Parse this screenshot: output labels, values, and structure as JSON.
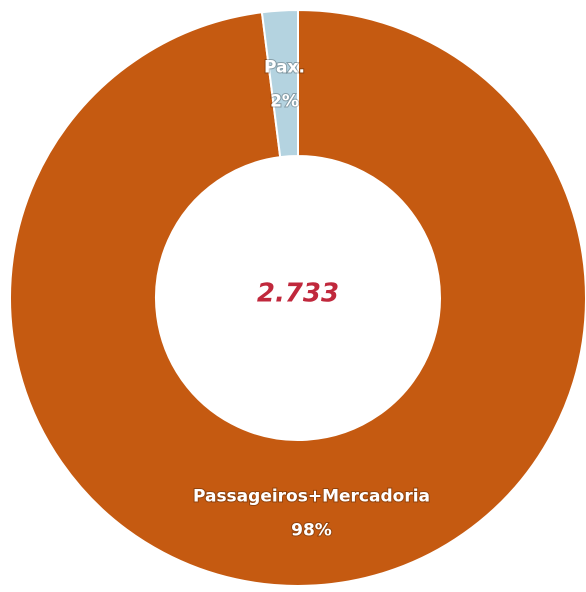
{
  "chart_data": {
    "type": "donut",
    "categories": [
      "Passageiros+Mercadoria",
      "Pax."
    ],
    "values": [
      98,
      2
    ],
    "value_labels": [
      "98%",
      "2%"
    ],
    "colors": [
      "#c55a11",
      "#b4d3e0"
    ],
    "center_label": "2.733"
  }
}
